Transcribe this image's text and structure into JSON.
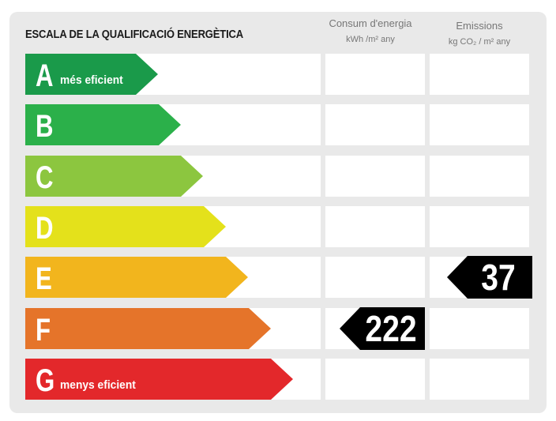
{
  "title": "ESCALA DE LA QUALIFICACIÓ ENERGÈTICA",
  "columns": {
    "consum": {
      "label": "Consum d'energia",
      "unit": "kWh /m² any"
    },
    "emissions": {
      "label": "Emissions",
      "unit": "kg CO₂ / m² any"
    }
  },
  "ratings": [
    {
      "letter": "A",
      "note": "més eficient",
      "color": "#1a9a4a"
    },
    {
      "letter": "B",
      "note": "",
      "color": "#2bb04a"
    },
    {
      "letter": "C",
      "note": "",
      "color": "#8cc63f"
    },
    {
      "letter": "D",
      "note": "",
      "color": "#e4e11b"
    },
    {
      "letter": "E",
      "note": "",
      "color": "#f2b51d"
    },
    {
      "letter": "F",
      "note": "",
      "color": "#e5742a"
    },
    {
      "letter": "G",
      "note": "menys eficient",
      "color": "#e3282b"
    }
  ],
  "consum_value": "222",
  "consum_rating": "F",
  "emissions_value": "37",
  "emissions_rating": "E"
}
